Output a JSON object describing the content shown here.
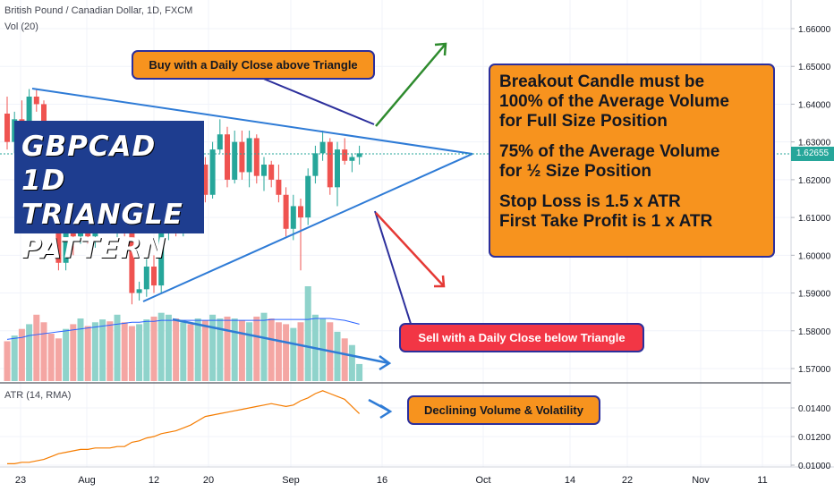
{
  "header": {
    "symbol_line": "British Pound / Canadian Dollar, 1D, FXCM",
    "vol_label": "Vol (20)",
    "atr_label": "ATR (14, RMA)"
  },
  "colors": {
    "up": "#26a69a",
    "down": "#ef5350",
    "vol_up": "#8fd3cb",
    "vol_down": "#f4a6a3",
    "trendline": "#2e7bd6",
    "arrow_up": "#2e8b2e",
    "arrow_down": "#e53935",
    "atr_line": "#f57c00",
    "callout_orange": "#f7931e",
    "callout_red": "#f23645"
  },
  "title_overlay": [
    "GBPCAD 1D",
    "TRIANGLE",
    "PATTERN"
  ],
  "callouts": {
    "buy": "Buy with a Daily Close above Triangle",
    "sell": "Sell with a Daily Close below Triangle",
    "volume": "Declining Volume & Volatility",
    "rules": [
      "Breakout Candle must be",
      "100% of the Average Volume",
      "for Full Size Position",
      "",
      "75% of the Average Volume",
      "for ½ Size Position",
      "",
      "Stop Loss is 1.5 x ATR",
      "First Take Profit is 1 x ATR"
    ]
  },
  "price_axis": {
    "ticks": [
      "1.66000",
      "1.65000",
      "1.64000",
      "1.63000",
      "1.62000",
      "1.61000",
      "1.60000",
      "1.59000",
      "1.58000",
      "1.57000"
    ],
    "last_price": "1.62655"
  },
  "atr_axis": {
    "ticks": [
      "0.01400",
      "0.01200",
      "0.01000"
    ]
  },
  "time_axis": {
    "ticks": [
      "23",
      "Aug",
      "12",
      "20",
      "Sep",
      "16",
      "Oct",
      "14",
      "22",
      "Nov",
      "11"
    ]
  },
  "chart_data": [
    {
      "type": "candlestick",
      "title": "British Pound / Canadian Dollar, 1D, FXCM",
      "ylim": [
        1.565,
        1.665
      ],
      "candles": [
        {
          "o": 1.6375,
          "h": 1.642,
          "l": 1.628,
          "c": 1.63
        },
        {
          "o": 1.63,
          "h": 1.638,
          "l": 1.627,
          "c": 1.636
        },
        {
          "o": 1.636,
          "h": 1.641,
          "l": 1.628,
          "c": 1.632
        },
        {
          "o": 1.632,
          "h": 1.644,
          "l": 1.63,
          "c": 1.642
        },
        {
          "o": 1.642,
          "h": 1.644,
          "l": 1.638,
          "c": 1.64
        },
        {
          "o": 1.64,
          "h": 1.641,
          "l": 1.619,
          "c": 1.62
        },
        {
          "o": 1.62,
          "h": 1.623,
          "l": 1.608,
          "c": 1.61
        },
        {
          "o": 1.61,
          "h": 1.611,
          "l": 1.596,
          "c": 1.598
        },
        {
          "o": 1.598,
          "h": 1.61,
          "l": 1.596,
          "c": 1.608
        },
        {
          "o": 1.608,
          "h": 1.611,
          "l": 1.6,
          "c": 1.605
        },
        {
          "o": 1.605,
          "h": 1.612,
          "l": 1.603,
          "c": 1.608
        },
        {
          "o": 1.608,
          "h": 1.61,
          "l": 1.603,
          "c": 1.605
        },
        {
          "o": 1.605,
          "h": 1.611,
          "l": 1.602,
          "c": 1.609
        },
        {
          "o": 1.609,
          "h": 1.613,
          "l": 1.607,
          "c": 1.61
        },
        {
          "o": 1.61,
          "h": 1.612,
          "l": 1.606,
          "c": 1.607
        },
        {
          "o": 1.607,
          "h": 1.613,
          "l": 1.604,
          "c": 1.609
        },
        {
          "o": 1.609,
          "h": 1.612,
          "l": 1.605,
          "c": 1.606
        },
        {
          "o": 1.606,
          "h": 1.607,
          "l": 1.587,
          "c": 1.59
        },
        {
          "o": 1.59,
          "h": 1.593,
          "l": 1.588,
          "c": 1.591
        },
        {
          "o": 1.591,
          "h": 1.599,
          "l": 1.589,
          "c": 1.597
        },
        {
          "o": 1.597,
          "h": 1.6,
          "l": 1.59,
          "c": 1.592
        },
        {
          "o": 1.592,
          "h": 1.608,
          "l": 1.59,
          "c": 1.606
        },
        {
          "o": 1.606,
          "h": 1.61,
          "l": 1.604,
          "c": 1.608
        },
        {
          "o": 1.608,
          "h": 1.609,
          "l": 1.605,
          "c": 1.606
        },
        {
          "o": 1.606,
          "h": 1.616,
          "l": 1.605,
          "c": 1.614
        },
        {
          "o": 1.614,
          "h": 1.618,
          "l": 1.608,
          "c": 1.61
        },
        {
          "o": 1.61,
          "h": 1.626,
          "l": 1.609,
          "c": 1.624
        },
        {
          "o": 1.624,
          "h": 1.626,
          "l": 1.614,
          "c": 1.616
        },
        {
          "o": 1.616,
          "h": 1.63,
          "l": 1.615,
          "c": 1.628
        },
        {
          "o": 1.628,
          "h": 1.636,
          "l": 1.627,
          "c": 1.632
        },
        {
          "o": 1.632,
          "h": 1.634,
          "l": 1.618,
          "c": 1.62
        },
        {
          "o": 1.62,
          "h": 1.633,
          "l": 1.619,
          "c": 1.63
        },
        {
          "o": 1.63,
          "h": 1.633,
          "l": 1.62,
          "c": 1.622
        },
        {
          "o": 1.622,
          "h": 1.633,
          "l": 1.618,
          "c": 1.631
        },
        {
          "o": 1.631,
          "h": 1.632,
          "l": 1.619,
          "c": 1.621
        },
        {
          "o": 1.621,
          "h": 1.626,
          "l": 1.617,
          "c": 1.624
        },
        {
          "o": 1.624,
          "h": 1.625,
          "l": 1.618,
          "c": 1.62
        },
        {
          "o": 1.62,
          "h": 1.624,
          "l": 1.614,
          "c": 1.616
        },
        {
          "o": 1.616,
          "h": 1.618,
          "l": 1.605,
          "c": 1.607
        },
        {
          "o": 1.607,
          "h": 1.616,
          "l": 1.604,
          "c": 1.613
        },
        {
          "o": 1.613,
          "h": 1.615,
          "l": 1.596,
          "c": 1.61
        },
        {
          "o": 1.61,
          "h": 1.623,
          "l": 1.608,
          "c": 1.621
        },
        {
          "o": 1.621,
          "h": 1.629,
          "l": 1.619,
          "c": 1.627
        },
        {
          "o": 1.627,
          "h": 1.633,
          "l": 1.625,
          "c": 1.63
        },
        {
          "o": 1.63,
          "h": 1.631,
          "l": 1.616,
          "c": 1.618
        },
        {
          "o": 1.618,
          "h": 1.63,
          "l": 1.613,
          "c": 1.628
        },
        {
          "o": 1.628,
          "h": 1.631,
          "l": 1.624,
          "c": 1.625
        },
        {
          "o": 1.625,
          "h": 1.627,
          "l": 1.622,
          "c": 1.626
        },
        {
          "o": 1.626,
          "h": 1.629,
          "l": 1.624,
          "c": 1.627
        }
      ]
    },
    {
      "type": "bar",
      "title": "Vol (20)",
      "values": [
        42,
        48,
        55,
        60,
        70,
        62,
        50,
        45,
        55,
        60,
        66,
        58,
        62,
        65,
        63,
        70,
        62,
        58,
        60,
        65,
        68,
        72,
        70,
        66,
        62,
        60,
        66,
        64,
        70,
        66,
        68,
        66,
        64,
        62,
        68,
        72,
        66,
        62,
        60,
        56,
        62,
        100,
        70,
        66,
        62,
        52,
        45,
        38,
        18
      ],
      "moving_average": [
        44,
        45,
        46,
        48,
        49,
        50,
        51,
        52,
        53,
        54,
        55,
        56,
        57,
        58,
        59,
        60,
        61,
        62,
        62,
        63,
        63,
        64,
        64,
        64,
        64,
        64,
        64,
        64,
        64,
        64,
        64,
        64,
        64,
        64,
        64,
        64,
        65,
        65,
        65,
        65,
        65,
        65,
        66,
        66,
        66,
        65,
        64,
        62,
        60
      ]
    },
    {
      "type": "line",
      "title": "ATR (14, RMA)",
      "ylim": [
        0.0098,
        0.0155
      ],
      "values": [
        0.0101,
        0.0101,
        0.0102,
        0.0102,
        0.0103,
        0.0104,
        0.0106,
        0.0108,
        0.0109,
        0.011,
        0.0111,
        0.0111,
        0.0112,
        0.0112,
        0.0112,
        0.0113,
        0.0113,
        0.0116,
        0.0117,
        0.0119,
        0.012,
        0.0122,
        0.0123,
        0.0124,
        0.0126,
        0.0128,
        0.0131,
        0.0134,
        0.0135,
        0.0136,
        0.0137,
        0.0138,
        0.0139,
        0.014,
        0.0141,
        0.0142,
        0.0143,
        0.0142,
        0.0141,
        0.0142,
        0.0145,
        0.0147,
        0.015,
        0.0152,
        0.015,
        0.0148,
        0.0146,
        0.0141,
        0.0136
      ]
    }
  ]
}
